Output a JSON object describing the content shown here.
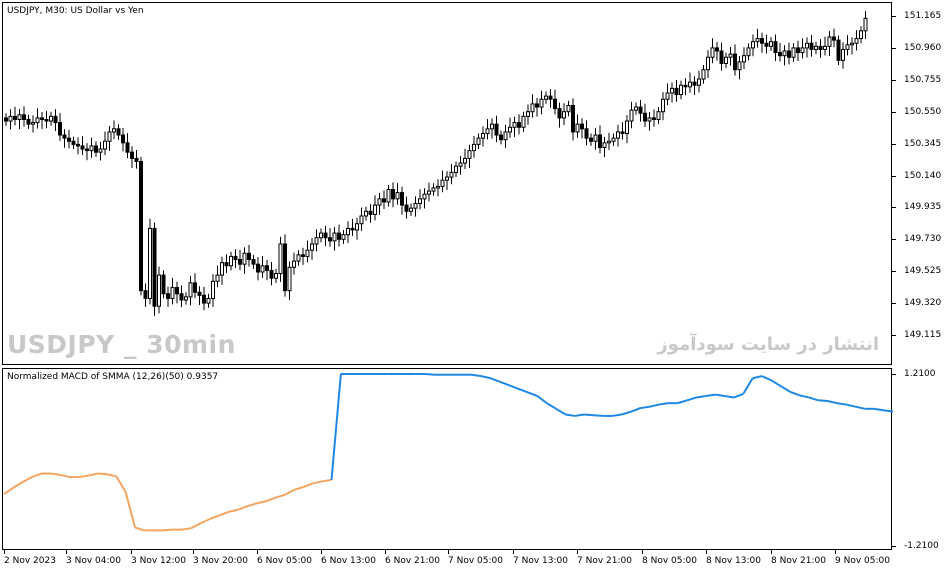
{
  "chart": {
    "title": "USDJPY, M30:  US Dollar vs Yen",
    "price_labels": [
      "151.165",
      "150.960",
      "150.755",
      "150.550",
      "150.345",
      "150.140",
      "149.935",
      "149.730",
      "149.525",
      "149.320",
      "149.115"
    ],
    "time_labels": [
      "2 Nov 2023",
      "3 Nov 04:00",
      "3 Nov 12:00",
      "3 Nov 20:00",
      "6 Nov 05:00",
      "6 Nov 13:00",
      "6 Nov 21:00",
      "7 Nov 05:00",
      "7 Nov 13:00",
      "7 Nov 21:00",
      "8 Nov 05:00",
      "8 Nov 13:00",
      "8 Nov 21:00",
      "9 Nov 05:00"
    ],
    "watermark_left": "USDJPY _ 30min",
    "watermark_right": "انتشار در سایت سودآموز"
  },
  "indicator": {
    "title": "Normalized MACD of SMMA (12,26)(50) 0.9357",
    "scale_labels": [
      "1.2100",
      "-1.2100"
    ],
    "colors": {
      "up": "#1e88e5",
      "down": "#f4a460"
    }
  },
  "chart_data": [
    {
      "type": "candlestick",
      "title": "USDJPY, M30:  US Dollar vs Yen",
      "ylim": [
        149.05,
        151.24
      ],
      "close": [
        150.49,
        150.52,
        150.5,
        150.53,
        150.5,
        150.47,
        150.48,
        150.51,
        150.5,
        150.49,
        150.52,
        150.48,
        150.4,
        150.38,
        150.36,
        150.34,
        150.33,
        150.31,
        150.3,
        150.33,
        150.29,
        150.31,
        150.36,
        150.42,
        150.44,
        150.4,
        150.35,
        150.29,
        150.25,
        150.23,
        149.4,
        149.35,
        149.8,
        149.3,
        149.5,
        149.38,
        149.35,
        149.42,
        149.38,
        149.34,
        149.36,
        149.45,
        149.39,
        149.37,
        149.32,
        149.35,
        149.46,
        149.5,
        149.58,
        149.56,
        149.62,
        149.6,
        149.57,
        149.64,
        149.6,
        149.57,
        149.52,
        149.56,
        149.53,
        149.48,
        149.51,
        149.7,
        149.4,
        149.55,
        149.59,
        149.63,
        149.62,
        149.66,
        149.7,
        149.74,
        149.77,
        149.74,
        149.72,
        149.77,
        149.73,
        149.76,
        149.8,
        149.79,
        149.83,
        149.88,
        149.91,
        149.89,
        149.95,
        149.99,
        149.97,
        150.05,
        149.99,
        150.03,
        149.95,
        149.91,
        149.93,
        149.96,
        149.99,
        150.02,
        150.04,
        150.06,
        150.07,
        150.11,
        150.13,
        150.16,
        150.2,
        150.22,
        150.25,
        150.3,
        150.34,
        150.38,
        150.41,
        150.44,
        150.47,
        150.4,
        150.37,
        150.42,
        150.45,
        150.48,
        150.45,
        150.52,
        150.55,
        150.6,
        150.58,
        150.63,
        150.65,
        150.63,
        150.57,
        150.51,
        150.55,
        150.59,
        150.42,
        150.47,
        150.44,
        150.38,
        150.36,
        150.4,
        150.32,
        150.35,
        150.36,
        150.38,
        150.42,
        150.41,
        150.49,
        150.56,
        150.58,
        150.54,
        150.49,
        150.51,
        150.5,
        150.55,
        150.63,
        150.67,
        150.7,
        150.66,
        150.72,
        150.71,
        150.74,
        150.72,
        150.76,
        150.82,
        150.9,
        150.96,
        150.94,
        150.86,
        150.9,
        150.92,
        150.82,
        150.87,
        150.91,
        150.96,
        151.0,
        151.02,
        150.99,
        150.97,
        151.0,
        150.93,
        150.91,
        150.94,
        150.9,
        150.96,
        150.93,
        150.96,
        150.99,
        150.95,
        150.97,
        150.95,
        150.97,
        151.03,
        151.01,
        150.88,
        150.95,
        150.98,
        150.99,
        151.02,
        151.07,
        151.15
      ],
      "candle_count": 195
    },
    {
      "type": "line",
      "title": "Normalized MACD of SMMA (12,26)(50) 0.9357",
      "ylim": [
        -1.21,
        1.21
      ],
      "series": [
        {
          "name": "Normalized MACD of SMMA (12,26)(50)",
          "values": [
            -0.48,
            -0.39,
            -0.31,
            -0.24,
            -0.19,
            -0.19,
            -0.21,
            -0.24,
            -0.24,
            -0.22,
            -0.19,
            -0.2,
            -0.23,
            -0.45,
            -0.95,
            -0.99,
            -0.99,
            -0.99,
            -0.98,
            -0.98,
            -0.96,
            -0.89,
            -0.83,
            -0.78,
            -0.73,
            -0.7,
            -0.65,
            -0.61,
            -0.58,
            -0.53,
            -0.49,
            -0.42,
            -0.38,
            -0.33,
            -0.3,
            -0.28,
            1.21,
            1.21,
            1.21,
            1.21,
            1.21,
            1.21,
            1.21,
            1.21,
            1.21,
            1.21,
            1.2,
            1.2,
            1.2,
            1.2,
            1.2,
            1.18,
            1.15,
            1.1,
            1.05,
            1.0,
            0.95,
            0.9,
            0.8,
            0.72,
            0.64,
            0.62,
            0.64,
            0.63,
            0.62,
            0.62,
            0.64,
            0.68,
            0.73,
            0.75,
            0.78,
            0.8,
            0.8,
            0.84,
            0.88,
            0.9,
            0.92,
            0.9,
            0.88,
            0.93,
            1.15,
            1.18,
            1.12,
            1.04,
            0.96,
            0.91,
            0.88,
            0.84,
            0.83,
            0.8,
            0.78,
            0.75,
            0.72,
            0.72,
            0.7,
            0.68
          ]
        }
      ]
    }
  ]
}
